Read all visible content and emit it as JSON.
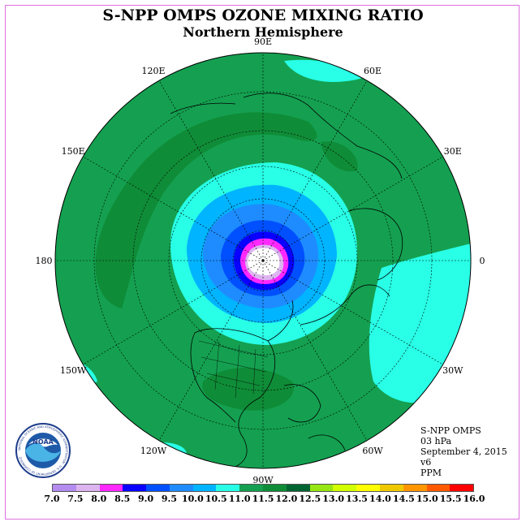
{
  "title": "S-NPP OMPS OZONE MIXING RATIO",
  "subtitle": "Northern Hemisphere",
  "longitude_labels": [
    {
      "text": "90E",
      "lon": 90
    },
    {
      "text": "60E",
      "lon": 60
    },
    {
      "text": "30E",
      "lon": 30
    },
    {
      "text": "0",
      "lon": 0
    },
    {
      "text": "30W",
      "lon": -30
    },
    {
      "text": "60W",
      "lon": -60
    },
    {
      "text": "90W",
      "lon": -90
    },
    {
      "text": "120W",
      "lon": -120
    },
    {
      "text": "150W",
      "lon": -150
    },
    {
      "text": "180",
      "lon": 180
    },
    {
      "text": "150E",
      "lon": 150
    },
    {
      "text": "120E",
      "lon": 120
    }
  ],
  "info": {
    "line1": "S-NPP OMPS",
    "line2": "03 hPa",
    "line3": "September 4, 2015",
    "line4": "v6",
    "line5": "PPM"
  },
  "colorbar": {
    "labels": [
      "7.0",
      "7.5",
      "8.0",
      "8.5",
      "9.0",
      "9.5",
      "10.0",
      "10.5",
      "11.0",
      "11.5",
      "12.0",
      "12.5",
      "13.0",
      "13.5",
      "14.0",
      "14.5",
      "15.0",
      "15.5",
      "16.0"
    ],
    "colors": [
      "#b48cf0",
      "#dcb4f0",
      "#ff28ff",
      "#0a00ff",
      "#0050ff",
      "#1e8cff",
      "#00b4ff",
      "#28ffe6",
      "#14a050",
      "#0f8c37",
      "#006432",
      "#96e614",
      "#d2ff00",
      "#ffff00",
      "#f0c800",
      "#ff9600",
      "#ff5a00",
      "#ff0000",
      "#825032"
    ]
  },
  "colors": {
    "background_field": "#14a050",
    "dark_band": "#0f8c37",
    "cyan": "#28ffe6",
    "light_blue": "#00b4ff",
    "mid_blue": "#1e8cff",
    "blue": "#0050ff",
    "deep_blue": "#0a00ff",
    "magenta": "#ff28ff",
    "lilac": "#dcb4f0"
  },
  "logo": {
    "name": "NOAA",
    "ring_text": "NATIONAL OCEANIC AND ATMOSPHERIC ADMINISTRATION · U.S. DEPARTMENT OF COMMERCE"
  }
}
